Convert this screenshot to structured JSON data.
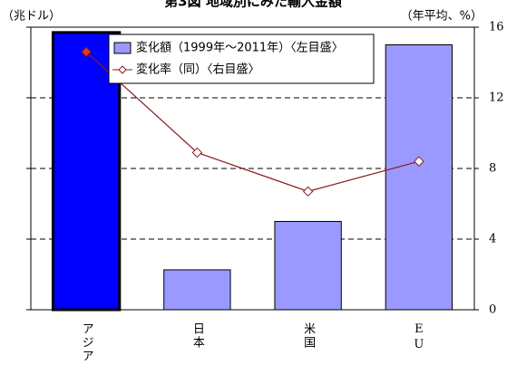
{
  "chart_data": {
    "type": "bar_line",
    "title": "第3図 地域別にみた輸入金額",
    "y_label": "（兆ドル）",
    "y2_label": "（年平均、%）",
    "categories": [
      "アジア",
      "日本",
      "米国",
      "EU"
    ],
    "series": [
      {
        "name": "変化額（1999年～2011年）〈左目盛〉",
        "type": "bar",
        "axis": "y",
        "color": "#9999ff",
        "colors": [
          "#0000ff",
          "#9999ff",
          "#9999ff",
          "#9999ff"
        ],
        "values": [
          15.7,
          2.26,
          5.0,
          15.0
        ]
      },
      {
        "name": "変化率（同）〈右目盛〉",
        "type": "line",
        "axis": "y2",
        "color": "#8b1a1a",
        "values": [
          14.6,
          8.9,
          6.7,
          8.4
        ]
      }
    ],
    "ylim": [
      0,
      16
    ],
    "y2lim": [
      0,
      16
    ],
    "y2ticks": [
      0,
      4,
      8,
      12,
      16
    ],
    "grid": true,
    "legend": "top"
  }
}
